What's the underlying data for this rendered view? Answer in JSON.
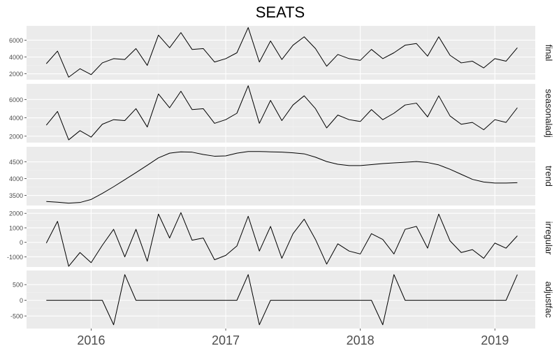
{
  "chart_data": {
    "type": "line",
    "title": "SEATS",
    "x_tick_labels": [
      "2016",
      "2017",
      "2018",
      "2019"
    ],
    "x_tick_values": [
      2016,
      2017,
      2018,
      2019
    ],
    "x_range": [
      2015.52,
      2019.3
    ],
    "x": [
      2015.667,
      2015.75,
      2015.833,
      2015.917,
      2016.0,
      2016.083,
      2016.167,
      2016.25,
      2016.333,
      2016.417,
      2016.5,
      2016.583,
      2016.667,
      2016.75,
      2016.833,
      2016.917,
      2017.0,
      2017.083,
      2017.167,
      2017.25,
      2017.333,
      2017.417,
      2017.5,
      2017.583,
      2017.667,
      2017.75,
      2017.833,
      2017.917,
      2018.0,
      2018.083,
      2018.167,
      2018.25,
      2018.333,
      2018.417,
      2018.5,
      2018.583,
      2018.667,
      2018.75,
      2018.833,
      2018.917,
      2019.0,
      2019.083,
      2019.167
    ],
    "panels": [
      {
        "name": "final",
        "yticks": [
          2000,
          4000,
          6000
        ],
        "ylim": [
          1300,
          7700
        ],
        "values": [
          3200,
          4700,
          1600,
          2600,
          1900,
          3300,
          3800,
          3700,
          5000,
          3000,
          6600,
          5100,
          6900,
          4900,
          5000,
          3400,
          3800,
          4500,
          7500,
          3400,
          5900,
          3700,
          5400,
          6400,
          5000,
          2900,
          4300,
          3800,
          3600,
          4900,
          3800,
          4500,
          5400,
          5600,
          4100,
          6400,
          4200,
          3300,
          3500,
          2700,
          3800,
          3500,
          5100
        ]
      },
      {
        "name": "seasonaladj",
        "yticks": [
          2000,
          4000,
          6000
        ],
        "ylim": [
          1300,
          7700
        ],
        "values": [
          3200,
          4700,
          1600,
          2600,
          1900,
          3300,
          3800,
          3700,
          5000,
          3000,
          6600,
          5100,
          6900,
          4900,
          5000,
          3400,
          3800,
          4500,
          7500,
          3400,
          5900,
          3700,
          5400,
          6400,
          5000,
          2900,
          4300,
          3800,
          3600,
          4900,
          3800,
          4500,
          5400,
          5600,
          4100,
          6400,
          4200,
          3300,
          3500,
          2700,
          3800,
          3500,
          5100
        ]
      },
      {
        "name": "trend",
        "yticks": [
          3500,
          4000,
          4500
        ],
        "ylim": [
          3200,
          4950
        ],
        "values": [
          3320,
          3300,
          3270,
          3290,
          3380,
          3560,
          3760,
          3970,
          4180,
          4400,
          4620,
          4760,
          4800,
          4790,
          4720,
          4670,
          4680,
          4760,
          4810,
          4810,
          4800,
          4790,
          4770,
          4740,
          4640,
          4510,
          4430,
          4390,
          4390,
          4420,
          4450,
          4470,
          4490,
          4510,
          4480,
          4410,
          4280,
          4130,
          3980,
          3900,
          3870,
          3870,
          3880
        ]
      },
      {
        "name": "irregular",
        "yticks": [
          -1000,
          0,
          1000,
          2000
        ],
        "ylim": [
          -1700,
          2300
        ],
        "values": [
          -50,
          1450,
          -1650,
          -700,
          -1400,
          -200,
          900,
          -1000,
          900,
          -1300,
          1950,
          300,
          2050,
          150,
          300,
          -1200,
          -900,
          -250,
          1800,
          -600,
          1100,
          -1100,
          600,
          1600,
          200,
          -1500,
          -100,
          -600,
          -800,
          600,
          200,
          -800,
          900,
          1100,
          -400,
          1950,
          100,
          -700,
          -500,
          -1100,
          -50,
          -400,
          450
        ]
      },
      {
        "name": "adjustfac",
        "yticks": [
          -500,
          0,
          500
        ],
        "ylim": [
          -900,
          950
        ],
        "values": [
          0,
          0,
          0,
          0,
          0,
          0,
          -780,
          820,
          0,
          0,
          0,
          0,
          0,
          0,
          0,
          0,
          0,
          0,
          820,
          -780,
          0,
          0,
          0,
          0,
          0,
          0,
          0,
          0,
          0,
          0,
          -780,
          820,
          0,
          0,
          0,
          0,
          0,
          0,
          0,
          0,
          0,
          0,
          820
        ]
      }
    ],
    "grid": true
  },
  "colors": {
    "panel_background": "#ebebeb",
    "grid_major": "#ffffff",
    "grid_minor": "#f2f2f2",
    "line": "#000000",
    "tick_label": "#4d4d4d",
    "strip_text": "#1a1a1a",
    "title": "#000000"
  }
}
